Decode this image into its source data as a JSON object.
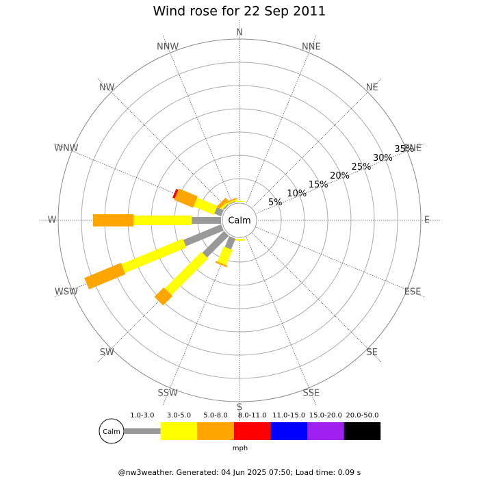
{
  "chart_data": {
    "type": "windrose",
    "title": "Wind rose for 22 Sep 2011",
    "directions": [
      "N",
      "NNE",
      "NE",
      "ENE",
      "E",
      "ESE",
      "SE",
      "SSE",
      "S",
      "SSW",
      "SW",
      "WSW",
      "W",
      "WNW",
      "NW",
      "NNW"
    ],
    "calm_label": "Calm",
    "rlim": [
      0,
      35
    ],
    "rticks": [
      {
        "value": 5,
        "label": "5%"
      },
      {
        "value": 10,
        "label": "10%"
      },
      {
        "value": 15,
        "label": "15%"
      },
      {
        "value": 20,
        "label": "20%"
      },
      {
        "value": 25,
        "label": "25%"
      },
      {
        "value": 30,
        "label": "30%"
      },
      {
        "value": 35,
        "label": "35%"
      }
    ],
    "grid": true,
    "unit_label": "mph",
    "series": [
      {
        "name": "1.0-3.0",
        "color": "#999999",
        "values": [
          0,
          0,
          0,
          0,
          0,
          0,
          0,
          0,
          0,
          2.5,
          6.6,
          8.8,
          6.3,
          1.6,
          0.3,
          0.2
        ]
      },
      {
        "name": "3.0-5.0",
        "color": "#ffff00",
        "values": [
          0.2,
          0,
          0,
          0,
          0,
          0,
          0,
          0,
          0.4,
          3.5,
          11.1,
          14.3,
          12.5,
          4.7,
          0.5,
          0.3
        ]
      },
      {
        "name": "5.0-8.0",
        "color": "#ffa500",
        "values": [
          0,
          0,
          0,
          0,
          0,
          0,
          0,
          0,
          0,
          0.4,
          2.9,
          8.5,
          8.7,
          4.4,
          0.8,
          0.3
        ]
      },
      {
        "name": "8.0-11.0",
        "color": "#ff0000",
        "values": [
          0,
          0,
          0,
          0,
          0,
          0,
          0,
          0,
          0,
          0,
          0,
          0,
          0,
          0.5,
          0,
          0
        ]
      },
      {
        "name": "11.0-15.0",
        "color": "#0000ff",
        "values": [
          0,
          0,
          0,
          0,
          0,
          0,
          0,
          0,
          0,
          0,
          0,
          0,
          0,
          0,
          0,
          0
        ]
      },
      {
        "name": "15.0-20.0",
        "color": "#a020f0",
        "values": [
          0,
          0,
          0,
          0,
          0,
          0,
          0,
          0,
          0,
          0,
          0,
          0,
          0,
          0,
          0,
          0
        ]
      },
      {
        "name": "20.0-50.0",
        "color": "#000000",
        "values": [
          0,
          0,
          0,
          0,
          0,
          0,
          0,
          0,
          0,
          0,
          0,
          0,
          0,
          0,
          0,
          0
        ]
      }
    ]
  },
  "footer": "@nw3weather. Generated: 04 Jun 2025 07:50; Load time: 0.09 s"
}
